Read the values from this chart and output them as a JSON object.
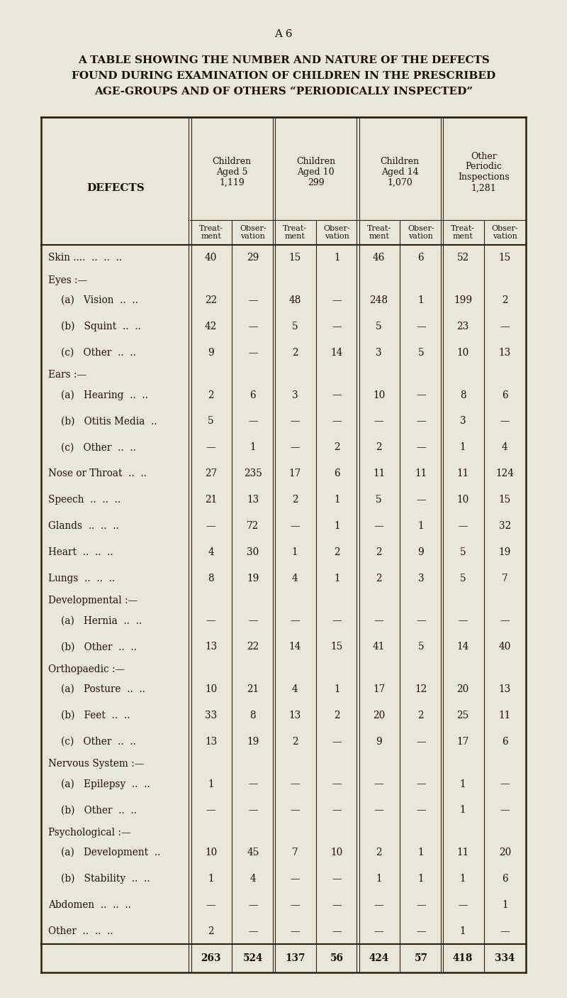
{
  "page_label": "A 6",
  "title_lines": [
    "A TABLE SHOWING THE NUMBER AND NATURE OF THE DEFECTS",
    "FOUND DURING EXAMINATION OF CHILDREN IN THE PRESCRIBED",
    "AGE-GROUPS AND OF OTHERS “PERIODICALLY INSPECTED”"
  ],
  "col_group_labels": [
    "Children\nAged 5\n1,119",
    "Children\nAged 10\n299",
    "Children\nAged 14\n1,070",
    "Other\nPeriodic\nInspections\n1,281"
  ],
  "sub_labels": [
    "Treat-\nment",
    "Obser-\nvation"
  ],
  "rows": [
    {
      "label": "Skin ....  ..  ..  ..",
      "indent": 0,
      "values": [
        "40",
        "29",
        "15",
        "1",
        "46",
        "6",
        "52",
        "15"
      ],
      "section_header": false,
      "is_total": false
    },
    {
      "label": "Eyes :—",
      "indent": 0,
      "values": null,
      "section_header": true,
      "is_total": false
    },
    {
      "label": "(a)   Vision  ..  ..",
      "indent": 1,
      "values": [
        "22",
        "—",
        "48",
        "—",
        "248",
        "1",
        "199",
        "2"
      ],
      "section_header": false,
      "is_total": false
    },
    {
      "label": "(b)   Squint  ..  ..",
      "indent": 1,
      "values": [
        "42",
        "—",
        "5",
        "—",
        "5",
        "—",
        "23",
        "—"
      ],
      "section_header": false,
      "is_total": false
    },
    {
      "label": "(c)   Other  ..  ..",
      "indent": 1,
      "values": [
        "9",
        "—",
        "2",
        "14",
        "3",
        "5",
        "10",
        "13"
      ],
      "section_header": false,
      "is_total": false
    },
    {
      "label": "Ears :—",
      "indent": 0,
      "values": null,
      "section_header": true,
      "is_total": false
    },
    {
      "label": "(a)   Hearing  ..  ..",
      "indent": 1,
      "values": [
        "2",
        "6",
        "3",
        "—",
        "10",
        "—",
        "8",
        "6"
      ],
      "section_header": false,
      "is_total": false
    },
    {
      "label": "(b)   Otitis Media  ..",
      "indent": 1,
      "values": [
        "5",
        "—",
        "—",
        "—",
        "—",
        "—",
        "3",
        "—"
      ],
      "section_header": false,
      "is_total": false
    },
    {
      "label": "(c)   Other  ..  ..",
      "indent": 1,
      "values": [
        "—",
        "1",
        "—",
        "2",
        "2",
        "—",
        "1",
        "4"
      ],
      "section_header": false,
      "is_total": false
    },
    {
      "label": "Nose or Throat  ..  ..",
      "indent": 0,
      "values": [
        "27",
        "235",
        "17",
        "6",
        "11",
        "11",
        "11",
        "124"
      ],
      "section_header": false,
      "is_total": false
    },
    {
      "label": "Speech  ..  ..  ..",
      "indent": 0,
      "values": [
        "21",
        "13",
        "2",
        "1",
        "5",
        "—",
        "10",
        "15"
      ],
      "section_header": false,
      "is_total": false
    },
    {
      "label": "Glands  ..  ..  ..",
      "indent": 0,
      "values": [
        "—",
        "72",
        "—",
        "1",
        "—",
        "1",
        "—",
        "32"
      ],
      "section_header": false,
      "is_total": false
    },
    {
      "label": "Heart  ..  ..  ..",
      "indent": 0,
      "values": [
        "4",
        "30",
        "1",
        "2",
        "2",
        "9",
        "5",
        "19"
      ],
      "section_header": false,
      "is_total": false
    },
    {
      "label": "Lungs  ..  ..  ..",
      "indent": 0,
      "values": [
        "8",
        "19",
        "4",
        "1",
        "2",
        "3",
        "5",
        "7"
      ],
      "section_header": false,
      "is_total": false
    },
    {
      "label": "Developmental :—",
      "indent": 0,
      "values": null,
      "section_header": true,
      "is_total": false
    },
    {
      "label": "(a)   Hernia  ..  ..",
      "indent": 1,
      "values": [
        "—",
        "—",
        "—",
        "—",
        "—",
        "—",
        "—",
        "—"
      ],
      "section_header": false,
      "is_total": false
    },
    {
      "label": "(b)   Other  ..  ..",
      "indent": 1,
      "values": [
        "13",
        "22",
        "14",
        "15",
        "41",
        "5",
        "14",
        "40"
      ],
      "section_header": false,
      "is_total": false
    },
    {
      "label": "Orthopaedic :—",
      "indent": 0,
      "values": null,
      "section_header": true,
      "is_total": false
    },
    {
      "label": "(a)   Posture  ..  ..",
      "indent": 1,
      "values": [
        "10",
        "21",
        "4",
        "1",
        "17",
        "12",
        "20",
        "13"
      ],
      "section_header": false,
      "is_total": false
    },
    {
      "label": "(b)   Feet  ..  ..",
      "indent": 1,
      "values": [
        "33",
        "8",
        "13",
        "2",
        "20",
        "2",
        "25",
        "11"
      ],
      "section_header": false,
      "is_total": false
    },
    {
      "label": "(c)   Other  ..  ..",
      "indent": 1,
      "values": [
        "13",
        "19",
        "2",
        "—",
        "9",
        "—",
        "17",
        "6"
      ],
      "section_header": false,
      "is_total": false
    },
    {
      "label": "Nervous System :—",
      "indent": 0,
      "values": null,
      "section_header": true,
      "is_total": false
    },
    {
      "label": "(a)   Epilepsy  ..  ..",
      "indent": 1,
      "values": [
        "1",
        "—",
        "—",
        "—",
        "—",
        "—",
        "1",
        "—"
      ],
      "section_header": false,
      "is_total": false
    },
    {
      "label": "(b)   Other  ..  ..",
      "indent": 1,
      "values": [
        "—",
        "—",
        "—",
        "—",
        "—",
        "—",
        "1",
        "—"
      ],
      "section_header": false,
      "is_total": false
    },
    {
      "label": "Psychological :—",
      "indent": 0,
      "values": null,
      "section_header": true,
      "is_total": false
    },
    {
      "label": "(a)   Development  ..",
      "indent": 1,
      "values": [
        "10",
        "45",
        "7",
        "10",
        "2",
        "1",
        "11",
        "20"
      ],
      "section_header": false,
      "is_total": false
    },
    {
      "label": "(b)   Stability  ..  ..",
      "indent": 1,
      "values": [
        "1",
        "4",
        "—",
        "—",
        "1",
        "1",
        "1",
        "6"
      ],
      "section_header": false,
      "is_total": false
    },
    {
      "label": "Abdomen  ..  ..  ..",
      "indent": 0,
      "values": [
        "—",
        "—",
        "—",
        "—",
        "—",
        "—",
        "—",
        "1"
      ],
      "section_header": false,
      "is_total": false
    },
    {
      "label": "Other  ..  ..  ..",
      "indent": 0,
      "values": [
        "2",
        "—",
        "—",
        "—",
        "—",
        "—",
        "1",
        "—"
      ],
      "section_header": false,
      "is_total": false
    },
    {
      "label": "",
      "indent": 0,
      "values": [
        "263",
        "524",
        "137",
        "56",
        "424",
        "57",
        "418",
        "334"
      ],
      "section_header": false,
      "is_total": true
    }
  ],
  "bg_color": "#eae6d9",
  "text_color": "#1a1208",
  "line_color": "#2a2010"
}
